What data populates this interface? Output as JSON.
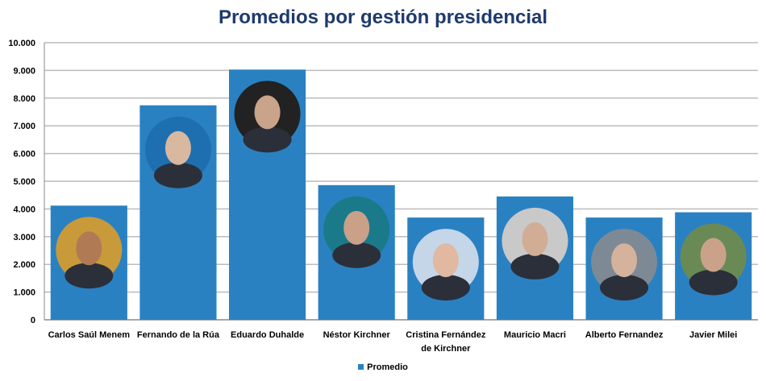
{
  "chart_data": {
    "type": "bar",
    "title": "Promedios por gestión presidencial",
    "xlabel": "",
    "ylabel": "",
    "ylim": [
      0,
      10000
    ],
    "yticks": [
      "0",
      "1.000",
      "2.000",
      "3.000",
      "4.000",
      "5.000",
      "6.000",
      "7.000",
      "8.000",
      "9.000",
      "10.000"
    ],
    "grid": true,
    "legend_position": "bottom",
    "categories": [
      "Carlos Saúl Menem",
      "Fernando de la Rúa",
      "Eduardo Duhalde",
      "Néstor Kirchner",
      "Cristina Fernández de Kirchner",
      "Mauricio Macri",
      "Alberto Fernandez",
      "Javier Milei"
    ],
    "category_lines": [
      [
        "Carlos Saúl Menem"
      ],
      [
        "Fernando de la Rúa"
      ],
      [
        "Eduardo Duhalde"
      ],
      [
        "Néstor Kirchner"
      ],
      [
        "Cristina Fernández",
        "de Kirchner"
      ],
      [
        "Mauricio Macri"
      ],
      [
        "Alberto Fernandez"
      ],
      [
        "Javier Milei"
      ]
    ],
    "series": [
      {
        "name": "Promedio",
        "color": "#2a81c2",
        "values": [
          4120,
          7740,
          9030,
          4860,
          3690,
          4450,
          3690,
          3880
        ]
      }
    ]
  }
}
